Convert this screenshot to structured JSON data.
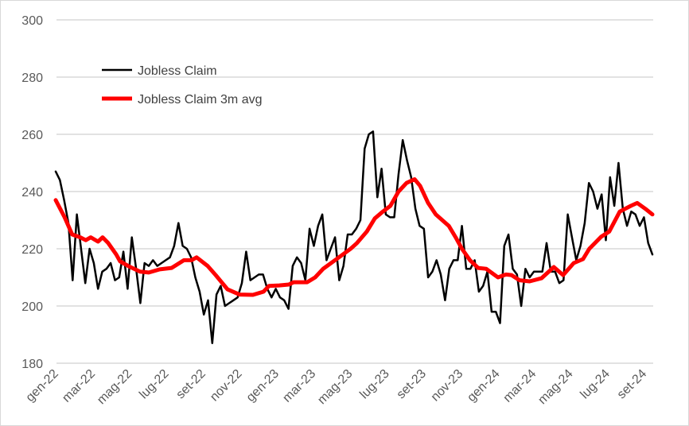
{
  "chart_data": {
    "type": "line",
    "title": "",
    "xlabel": "",
    "ylabel": "",
    "ylim": [
      180,
      300
    ],
    "yticks": [
      180,
      200,
      220,
      240,
      260,
      280,
      300
    ],
    "grid": true,
    "legend_position": "top-left",
    "x_unit": "week index from start of Jan 2022",
    "xticks": [
      {
        "label": "gen-22",
        "week": 0
      },
      {
        "label": "mar-22",
        "week": 8.7
      },
      {
        "label": "mag-22",
        "week": 17.4
      },
      {
        "label": "lug-22",
        "week": 26.1
      },
      {
        "label": "set-22",
        "week": 34.8
      },
      {
        "label": "nov-22",
        "week": 43.4
      },
      {
        "label": "gen-23",
        "week": 52.1
      },
      {
        "label": "mar-23",
        "week": 60.8
      },
      {
        "label": "mag-23",
        "week": 69.5
      },
      {
        "label": "lug-23",
        "week": 78.2
      },
      {
        "label": "set-23",
        "week": 86.9
      },
      {
        "label": "nov-23",
        "week": 95.6
      },
      {
        "label": "gen-24",
        "week": 104.3
      },
      {
        "label": "mar-24",
        "week": 112.9
      },
      {
        "label": "mag-24",
        "week": 121.6
      },
      {
        "label": "lug-24",
        "week": 130.3
      },
      {
        "label": "set-24",
        "week": 139.0
      }
    ],
    "series": [
      {
        "name": "Jobless Claim",
        "color": "#000000",
        "values": [
          247,
          244,
          237,
          229,
          209,
          232,
          220,
          208,
          220,
          215,
          206,
          212,
          213,
          215,
          209,
          210,
          219,
          206,
          224,
          213,
          201,
          215,
          214,
          216,
          214,
          215,
          216,
          217,
          221,
          229,
          221,
          220,
          217,
          210,
          205,
          197,
          202,
          187,
          204,
          207,
          200,
          201,
          202,
          203,
          208,
          219,
          209,
          210,
          211,
          211,
          206,
          203,
          206,
          203,
          202,
          199,
          214,
          217,
          215,
          209,
          227,
          221,
          228,
          232,
          216,
          220,
          224,
          209,
          214,
          225,
          225,
          227,
          230,
          255,
          260,
          261,
          238,
          248,
          232,
          231,
          231,
          246,
          258,
          251,
          245,
          234,
          228,
          227,
          210,
          212,
          216,
          211,
          202,
          213,
          216,
          216,
          228,
          213,
          213,
          216,
          205,
          207,
          212,
          198,
          198,
          194,
          221,
          225,
          213,
          211,
          200,
          213,
          210,
          212,
          212,
          212,
          222,
          212,
          212,
          208,
          209,
          232,
          224,
          216,
          221,
          229,
          243,
          240,
          234,
          239,
          223,
          245,
          235,
          250,
          234,
          228,
          233,
          232,
          228,
          231,
          222,
          218
        ]
      },
      {
        "name": "Jobless Claim 3m avg",
        "color": "#ff0000",
        "x": [
          0,
          2.1,
          3.9,
          5.8,
          7.1,
          8.3,
          10,
          11.1,
          12.4,
          14.3,
          15.2,
          17.1,
          19.9,
          22,
          24.6,
          27.4,
          30.3,
          32.1,
          33.3,
          35.9,
          37.8,
          40.6,
          43.4,
          46.6,
          49.1,
          50.4,
          52.8,
          55.1,
          56.2,
          59.4,
          61.3,
          63.2,
          66,
          69.7,
          71.2,
          73.5,
          75.4,
          77.3,
          79.1,
          81,
          82.9,
          84.8,
          86.1,
          88,
          89.8,
          92.9,
          94.5,
          96,
          97.9,
          99.8,
          101.7,
          104.5,
          106.4,
          107.7,
          109.6,
          112,
          114.8,
          117.7,
          119.9,
          122.4,
          124.6,
          126.1,
          128.9,
          130.8,
          133.3,
          135.9,
          137.4,
          139.3,
          141
        ],
        "values": [
          237,
          231,
          225,
          224,
          223,
          224,
          222.5,
          224,
          222,
          218,
          215.6,
          214,
          212,
          211.7,
          212.8,
          213.3,
          216,
          216,
          217,
          214,
          210.8,
          205.8,
          204,
          203.9,
          205,
          207,
          207.2,
          207.5,
          208.3,
          208.3,
          210,
          213,
          216,
          220,
          222,
          226,
          230.6,
          233,
          235,
          240,
          243,
          244.3,
          242,
          236,
          232,
          228,
          224,
          220,
          216,
          213.3,
          213,
          210,
          211,
          210.8,
          209,
          208.6,
          209.7,
          213.6,
          210.8,
          215,
          216.4,
          220,
          224.2,
          226,
          233,
          235,
          236,
          234,
          232
        ]
      }
    ]
  }
}
